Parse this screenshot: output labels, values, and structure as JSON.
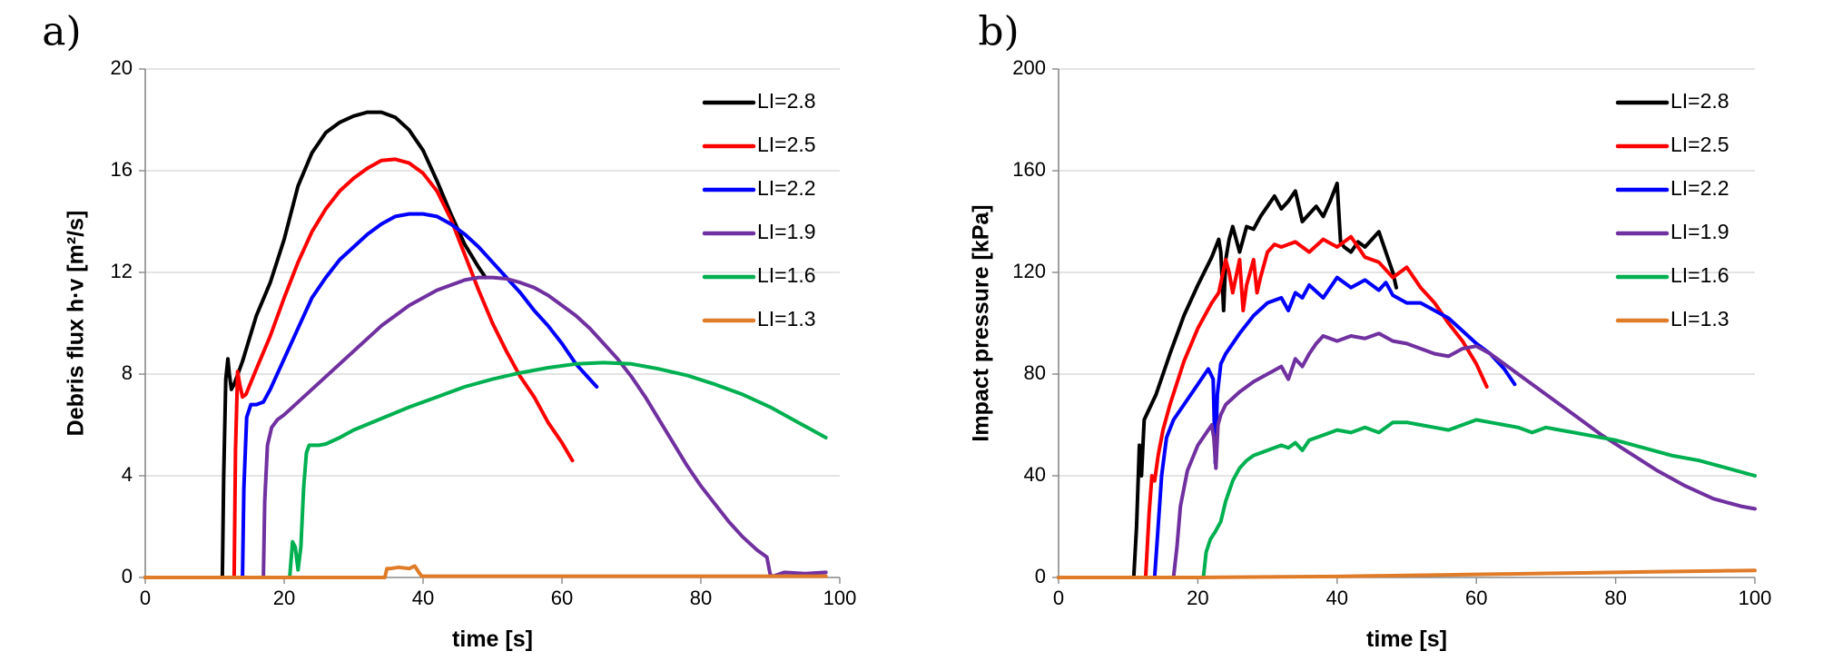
{
  "chart_data": [
    {
      "type": "line",
      "panel": "a)",
      "xlabel": "time [s]",
      "ylabel": "Debris flux h·v [m²/s]",
      "xlim": [
        0,
        100
      ],
      "ylim": [
        0,
        20
      ],
      "xticks": [
        0,
        20,
        40,
        60,
        80,
        100
      ],
      "yticks": [
        0,
        4,
        8,
        12,
        16,
        20
      ],
      "grid": "horizontal",
      "legend": "top-right",
      "series": [
        {
          "name": "LI=2.8",
          "color": "#000000",
          "x": [
            0,
            11.1,
            11.3,
            11.6,
            11.9,
            12.1,
            12.4,
            12.8,
            14,
            16,
            18,
            20,
            22,
            24,
            26,
            28,
            30,
            32,
            34,
            36,
            38,
            40,
            42,
            44,
            46,
            48,
            49
          ],
          "y": [
            0,
            0,
            4,
            7.8,
            8.6,
            8.0,
            7.4,
            7.6,
            8.5,
            10.3,
            11.6,
            13.3,
            15.4,
            16.7,
            17.5,
            17.9,
            18.15,
            18.3,
            18.3,
            18.1,
            17.6,
            16.8,
            15.6,
            14.3,
            13.1,
            12.2,
            11.8
          ]
        },
        {
          "name": "LI=2.5",
          "color": "#ff0000",
          "x": [
            0,
            12.8,
            13.0,
            13.3,
            13.6,
            14.0,
            14.5,
            16,
            18,
            20,
            22,
            24,
            26,
            28,
            30,
            32,
            34,
            36,
            38,
            40,
            42,
            44,
            46,
            48,
            50,
            52,
            54,
            56,
            58,
            60,
            61.5
          ],
          "y": [
            0,
            0,
            5,
            8.1,
            7.6,
            7.1,
            7.2,
            8.2,
            9.5,
            11.0,
            12.4,
            13.6,
            14.5,
            15.2,
            15.7,
            16.1,
            16.4,
            16.45,
            16.3,
            15.9,
            15.2,
            14.1,
            12.7,
            11.3,
            10.0,
            8.9,
            7.9,
            7.1,
            6.1,
            5.3,
            4.6
          ]
        },
        {
          "name": "LI=2.2",
          "color": "#0000ff",
          "x": [
            0,
            14.0,
            14.2,
            14.6,
            15.2,
            16,
            17,
            18,
            20,
            22,
            24,
            26,
            28,
            30,
            32,
            34,
            36,
            38,
            40,
            42,
            44,
            46,
            48,
            50,
            52,
            54,
            56,
            58,
            60,
            62,
            64,
            65
          ],
          "y": [
            0,
            0,
            3.5,
            6.3,
            6.8,
            6.8,
            6.9,
            7.4,
            8.6,
            9.8,
            11.0,
            11.8,
            12.5,
            13.0,
            13.5,
            13.9,
            14.2,
            14.3,
            14.3,
            14.2,
            13.9,
            13.5,
            13.0,
            12.4,
            11.8,
            11.2,
            10.5,
            9.9,
            9.2,
            8.4,
            7.8,
            7.5
          ]
        },
        {
          "name": "LI=1.9",
          "color": "#7030a0",
          "x": [
            0,
            17.0,
            17.2,
            17.6,
            18.2,
            19,
            20,
            22,
            24,
            26,
            28,
            30,
            32,
            34,
            36,
            38,
            40,
            42,
            44,
            46,
            48,
            50,
            52,
            54,
            56,
            58,
            60,
            62,
            64,
            66,
            68,
            70,
            72,
            74,
            76,
            78,
            80,
            82,
            84,
            86,
            88,
            89.5,
            90.0,
            90.4,
            92,
            95,
            98
          ],
          "y": [
            0,
            0,
            3,
            5.2,
            5.9,
            6.2,
            6.4,
            6.9,
            7.4,
            7.9,
            8.4,
            8.9,
            9.4,
            9.9,
            10.3,
            10.7,
            11.0,
            11.3,
            11.5,
            11.7,
            11.8,
            11.8,
            11.75,
            11.6,
            11.4,
            11.1,
            10.7,
            10.3,
            9.8,
            9.2,
            8.6,
            7.9,
            7.1,
            6.2,
            5.3,
            4.4,
            3.6,
            2.9,
            2.2,
            1.6,
            1.1,
            0.8,
            0.1,
            0.05,
            0.2,
            0.15,
            0.2
          ]
        },
        {
          "name": "LI=1.6",
          "color": "#00b050",
          "x": [
            0,
            20.8,
            21.2,
            21.6,
            22.0,
            22.4,
            22.8,
            23.2,
            23.6,
            24.2,
            25,
            26,
            28,
            30,
            34,
            38,
            42,
            46,
            50,
            54,
            58,
            62,
            66,
            70,
            74,
            78,
            82,
            86,
            90,
            94,
            98
          ],
          "y": [
            0,
            0,
            1.4,
            1.2,
            0.3,
            1.2,
            3.5,
            4.9,
            5.2,
            5.2,
            5.2,
            5.25,
            5.5,
            5.8,
            6.25,
            6.7,
            7.1,
            7.5,
            7.8,
            8.05,
            8.25,
            8.4,
            8.45,
            8.4,
            8.2,
            7.95,
            7.6,
            7.2,
            6.7,
            6.1,
            5.5
          ]
        },
        {
          "name": "LI=1.3",
          "color": "#e07b28",
          "x": [
            0,
            34.5,
            34.8,
            35.3,
            36.5,
            38,
            38.8,
            39.4,
            39.8,
            43,
            50,
            60,
            70,
            80,
            90,
            98
          ],
          "y": [
            0,
            0,
            0.35,
            0.35,
            0.4,
            0.35,
            0.45,
            0.2,
            0.05,
            0.05,
            0.05,
            0.05,
            0.05,
            0.05,
            0.05,
            0.05
          ]
        }
      ]
    },
    {
      "type": "line",
      "panel": "b)",
      "xlabel": "time [s]",
      "ylabel": "Impact pressure [kPa]",
      "xlim": [
        0,
        100
      ],
      "ylim": [
        0,
        200
      ],
      "xticks": [
        0,
        20,
        40,
        60,
        80,
        100
      ],
      "yticks": [
        0,
        40,
        80,
        120,
        160,
        200
      ],
      "grid": "horizontal",
      "legend": "top-right",
      "series": [
        {
          "name": "LI=2.8",
          "color": "#000000",
          "x": [
            0,
            10.8,
            11.2,
            11.6,
            11.9,
            12.3,
            12.8,
            14,
            16,
            18,
            20,
            22,
            23,
            23.3,
            23.7,
            24,
            24.5,
            25,
            26,
            27,
            28,
            29,
            30,
            31,
            32,
            33,
            34,
            35,
            36,
            37,
            38,
            39,
            40,
            40.5,
            41,
            42,
            43,
            44,
            45,
            46,
            47,
            48,
            48.5
          ],
          "y": [
            0,
            0,
            20,
            52,
            40,
            62,
            65,
            72,
            88,
            103,
            115,
            126,
            133,
            128,
            105,
            125,
            133,
            138,
            128,
            138,
            137,
            142,
            146,
            150,
            145,
            148,
            152,
            140,
            143,
            146,
            142,
            148,
            155,
            132,
            130,
            128,
            132,
            130,
            133,
            136,
            128,
            120,
            114
          ]
        },
        {
          "name": "LI=2.5",
          "color": "#ff0000",
          "x": [
            0,
            12.5,
            13.0,
            13.4,
            13.8,
            14.3,
            15,
            16,
            18,
            20,
            22,
            23,
            24,
            24.5,
            25,
            26,
            26.5,
            27,
            28,
            28.5,
            29,
            30,
            31,
            32,
            34,
            36,
            38,
            40,
            42,
            44,
            46,
            48,
            50,
            52,
            54,
            56,
            58,
            60,
            61.5
          ],
          "y": [
            0,
            0,
            25,
            40,
            38,
            48,
            58,
            68,
            85,
            98,
            108,
            112,
            125,
            120,
            112,
            125,
            105,
            115,
            125,
            112,
            118,
            128,
            131,
            130,
            132,
            128,
            133,
            130,
            134,
            126,
            124,
            118,
            122,
            114,
            108,
            100,
            93,
            84,
            75
          ]
        },
        {
          "name": "LI=2.2",
          "color": "#0000ff",
          "x": [
            0,
            13.8,
            14.3,
            14.8,
            15.5,
            16.5,
            18,
            20,
            21.5,
            22.2,
            22.5,
            22.8,
            23.3,
            24,
            25,
            26,
            28,
            30,
            32,
            33,
            34,
            35,
            36,
            38,
            40,
            42,
            44,
            46,
            47,
            48,
            50,
            52,
            54,
            56,
            58,
            60,
            62,
            64,
            65.5
          ],
          "y": [
            0,
            0,
            20,
            40,
            55,
            62,
            68,
            76,
            82,
            78,
            45,
            72,
            84,
            88,
            92,
            96,
            103,
            108,
            110,
            105,
            112,
            110,
            115,
            110,
            118,
            114,
            117,
            113,
            116,
            111,
            108,
            108,
            105,
            102,
            97,
            92,
            88,
            82,
            76
          ]
        },
        {
          "name": "LI=1.9",
          "color": "#7030a0",
          "x": [
            0,
            16.5,
            17.0,
            17.5,
            18.5,
            20,
            22,
            22.3,
            22.6,
            22.9,
            23.3,
            24,
            26,
            28,
            30,
            32,
            33,
            34,
            35,
            36,
            37,
            38,
            40,
            42,
            44,
            46,
            48,
            50,
            52,
            54,
            56,
            58,
            60,
            62,
            66,
            70,
            74,
            78,
            82,
            86,
            90,
            94,
            98,
            100
          ],
          "y": [
            0,
            0,
            12,
            28,
            42,
            52,
            60,
            55,
            43,
            60,
            64,
            68,
            73,
            77,
            80,
            83,
            78,
            86,
            83,
            88,
            92,
            95,
            93,
            95,
            94,
            96,
            93,
            92,
            90,
            88,
            87,
            90,
            91,
            88,
            80,
            72,
            64,
            56,
            49,
            42,
            36,
            31,
            28,
            27
          ]
        },
        {
          "name": "LI=1.6",
          "color": "#00b050",
          "x": [
            0,
            20.8,
            21.2,
            21.8,
            22.5,
            23.3,
            24,
            25,
            26,
            27,
            28,
            30,
            32,
            33,
            34,
            35,
            36,
            38,
            40,
            42,
            44,
            46,
            48,
            50,
            52,
            54,
            56,
            58,
            60,
            62,
            64,
            66,
            68,
            70,
            72,
            74,
            76,
            78,
            80,
            84,
            88,
            92,
            96,
            100
          ],
          "y": [
            0,
            0,
            10,
            15,
            18,
            22,
            30,
            38,
            43,
            46,
            48,
            50,
            52,
            51,
            53,
            50,
            54,
            56,
            58,
            57,
            59,
            57,
            61,
            61,
            60,
            59,
            58,
            60,
            62,
            61,
            60,
            59,
            57,
            59,
            58,
            57,
            56,
            55,
            54,
            51,
            48,
            46,
            43,
            40
          ]
        },
        {
          "name": "LI=1.3",
          "color": "#e07b28",
          "x": [
            0,
            20,
            30,
            40,
            45,
            50,
            55,
            60,
            65,
            70,
            75,
            80,
            85,
            90,
            95,
            100
          ],
          "y": [
            0,
            0,
            0.2,
            0.4,
            0.6,
            0.8,
            1.0,
            1.2,
            1.4,
            1.6,
            1.8,
            2.0,
            2.2,
            2.4,
            2.6,
            2.8
          ]
        }
      ]
    }
  ]
}
